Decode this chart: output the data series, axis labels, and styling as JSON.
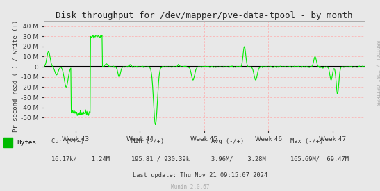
{
  "title": "Disk throughput for /dev/mapper/pve-data-tpool - by month",
  "ylabel": "Pr second read (-) / write (+)",
  "background_color": "#e8e8e8",
  "plot_bg_color": "#e8e8e8",
  "grid_color": "#ffaaaa",
  "line_color": "#00ee00",
  "zero_line_color": "#000000",
  "border_color": "#aaaaaa",
  "ylim": [
    -63000000,
    45000000
  ],
  "yticks": [
    -50000000,
    -40000000,
    -30000000,
    -20000000,
    -10000000,
    0,
    10000000,
    20000000,
    30000000,
    40000000
  ],
  "ytick_labels": [
    "-50 M",
    "-40 M",
    "-30 M",
    "-20 M",
    "-10 M",
    "0",
    "10 M",
    "20 M",
    "30 M",
    "40 M"
  ],
  "week_labels": [
    "Week 43",
    "Week 44",
    "Week 45",
    "Week 46",
    "Week 47"
  ],
  "legend_label": "Bytes",
  "legend_color": "#00bb00",
  "last_update": "Last update: Thu Nov 21 09:15:07 2024",
  "munin_version": "Munin 2.0.67",
  "rrdtool_text": "RRDTOOL / TOBI OETIKER",
  "cur_label": "Cur (-/+)",
  "cur_val": "16.17k/    1.24M",
  "min_label": "Min (-/+)",
  "min_val": "195.81 / 930.39k",
  "avg_label": "Avg (-/+)",
  "avg_val": "3.96M/    3.28M",
  "max_label": "Max (-/+)",
  "max_val": "165.69M/  69.47M",
  "num_points": 700
}
